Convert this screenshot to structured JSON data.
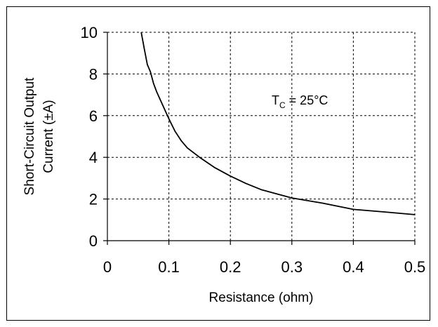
{
  "chart_data": {
    "type": "line",
    "title": "",
    "xlabel": "Resistance (ohm)",
    "ylabel_lines": [
      "Short-Circuit Output",
      "Current (±A)"
    ],
    "xlim": [
      0,
      0.5
    ],
    "ylim": [
      0,
      10
    ],
    "x_ticks": [
      0,
      0.1,
      0.2,
      0.3,
      0.4,
      0.5
    ],
    "x_tick_labels": [
      "0",
      "0.1",
      "0.2",
      "0.3",
      "0.4",
      "0.5"
    ],
    "y_ticks": [
      0,
      2,
      4,
      6,
      8,
      10
    ],
    "y_tick_labels": [
      "0",
      "2",
      "4",
      "6",
      "8",
      "10"
    ],
    "grid": "dashed",
    "annotation": {
      "main": "T",
      "sub": "C",
      "rest": " = 25°C"
    },
    "series": [
      {
        "color": "#000000",
        "x": [
          0.055,
          0.06,
          0.065,
          0.07,
          0.075,
          0.08,
          0.09,
          0.1,
          0.11,
          0.12,
          0.13,
          0.15,
          0.175,
          0.2,
          0.225,
          0.25,
          0.3,
          0.35,
          0.4,
          0.45,
          0.5
        ],
        "y": [
          10.0,
          9.2,
          8.45,
          8.1,
          7.55,
          7.15,
          6.5,
          5.85,
          5.25,
          4.8,
          4.45,
          4.0,
          3.5,
          3.1,
          2.75,
          2.45,
          2.05,
          1.8,
          1.5,
          1.38,
          1.25
        ]
      }
    ]
  }
}
